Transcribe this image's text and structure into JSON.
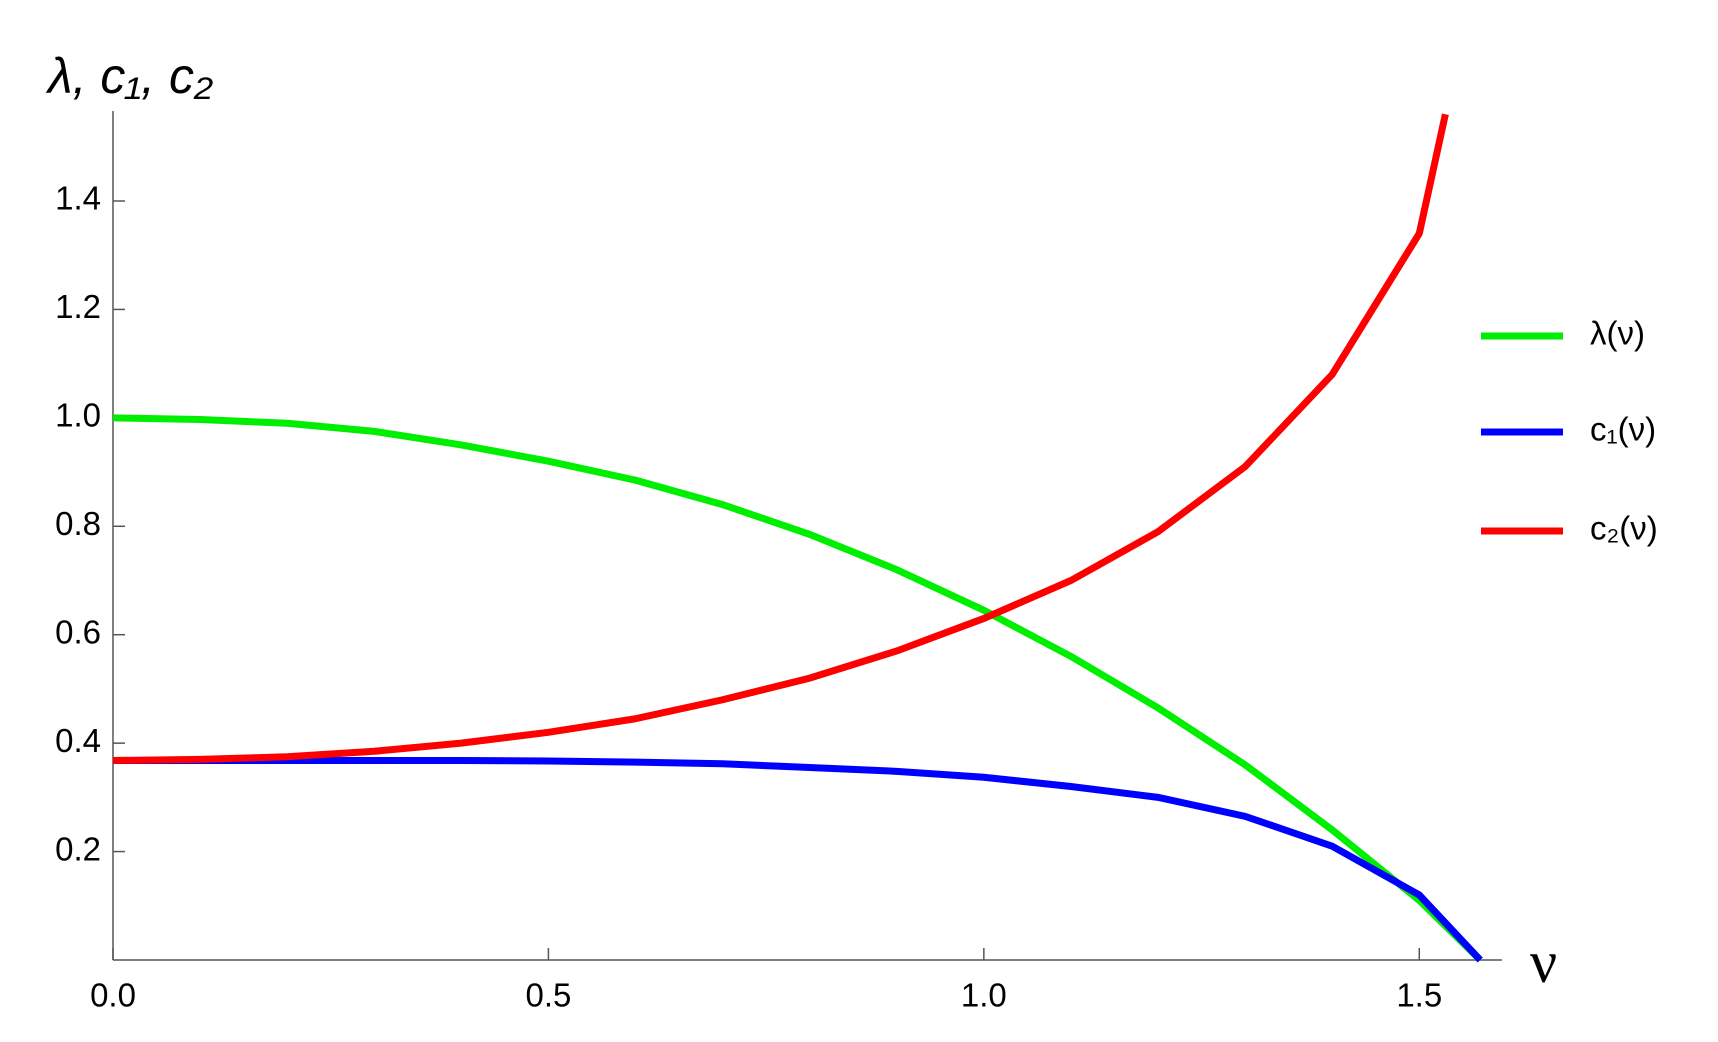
{
  "chart_data": {
    "type": "line",
    "xlabel": "ν",
    "ylabel": "λ, c₁, c₂",
    "xlim": [
      0,
      1.595
    ],
    "ylim": [
      0,
      1.566
    ],
    "xticks": [
      {
        "value": 0,
        "label": "0.0"
      },
      0.5,
      {
        "value": 1,
        "label": "1.0"
      },
      1.5
    ],
    "yticks": [
      0.2,
      0.4,
      0.6,
      0.8,
      {
        "value": 1,
        "label": "1.0"
      },
      1.2,
      1.4
    ],
    "legend": "right",
    "series": [
      {
        "name": "λ(ν)",
        "color": "#00ee00",
        "x": [
          0,
          0.1,
          0.2,
          0.3,
          0.4,
          0.5,
          0.6,
          0.7,
          0.8,
          0.9,
          1.0,
          1.1,
          1.2,
          1.3,
          1.4,
          1.5,
          1.57
        ],
        "values": [
          1.0,
          0.997,
          0.99,
          0.975,
          0.95,
          0.92,
          0.885,
          0.84,
          0.785,
          0.72,
          0.645,
          0.56,
          0.465,
          0.36,
          0.24,
          0.11,
          0
        ]
      },
      {
        "name": "c₁(ν)",
        "color": "#0000ff",
        "x": [
          0,
          0.1,
          0.2,
          0.3,
          0.4,
          0.5,
          0.6,
          0.7,
          0.8,
          0.9,
          1.0,
          1.1,
          1.2,
          1.3,
          1.4,
          1.5,
          1.57
        ],
        "values": [
          0.368,
          0.368,
          0.368,
          0.368,
          0.368,
          0.367,
          0.365,
          0.362,
          0.355,
          0.348,
          0.337,
          0.32,
          0.3,
          0.265,
          0.21,
          0.12,
          0
        ]
      },
      {
        "name": "c₂(ν)",
        "color": "#ff0000",
        "x": [
          0,
          0.1,
          0.2,
          0.3,
          0.4,
          0.5,
          0.6,
          0.7,
          0.8,
          0.9,
          1.0,
          1.1,
          1.2,
          1.3,
          1.4,
          1.5,
          1.53
        ],
        "values": [
          0.368,
          0.37,
          0.375,
          0.385,
          0.4,
          0.42,
          0.445,
          0.48,
          0.52,
          0.57,
          0.63,
          0.7,
          0.79,
          0.91,
          1.08,
          1.34,
          1.56
        ]
      }
    ]
  }
}
